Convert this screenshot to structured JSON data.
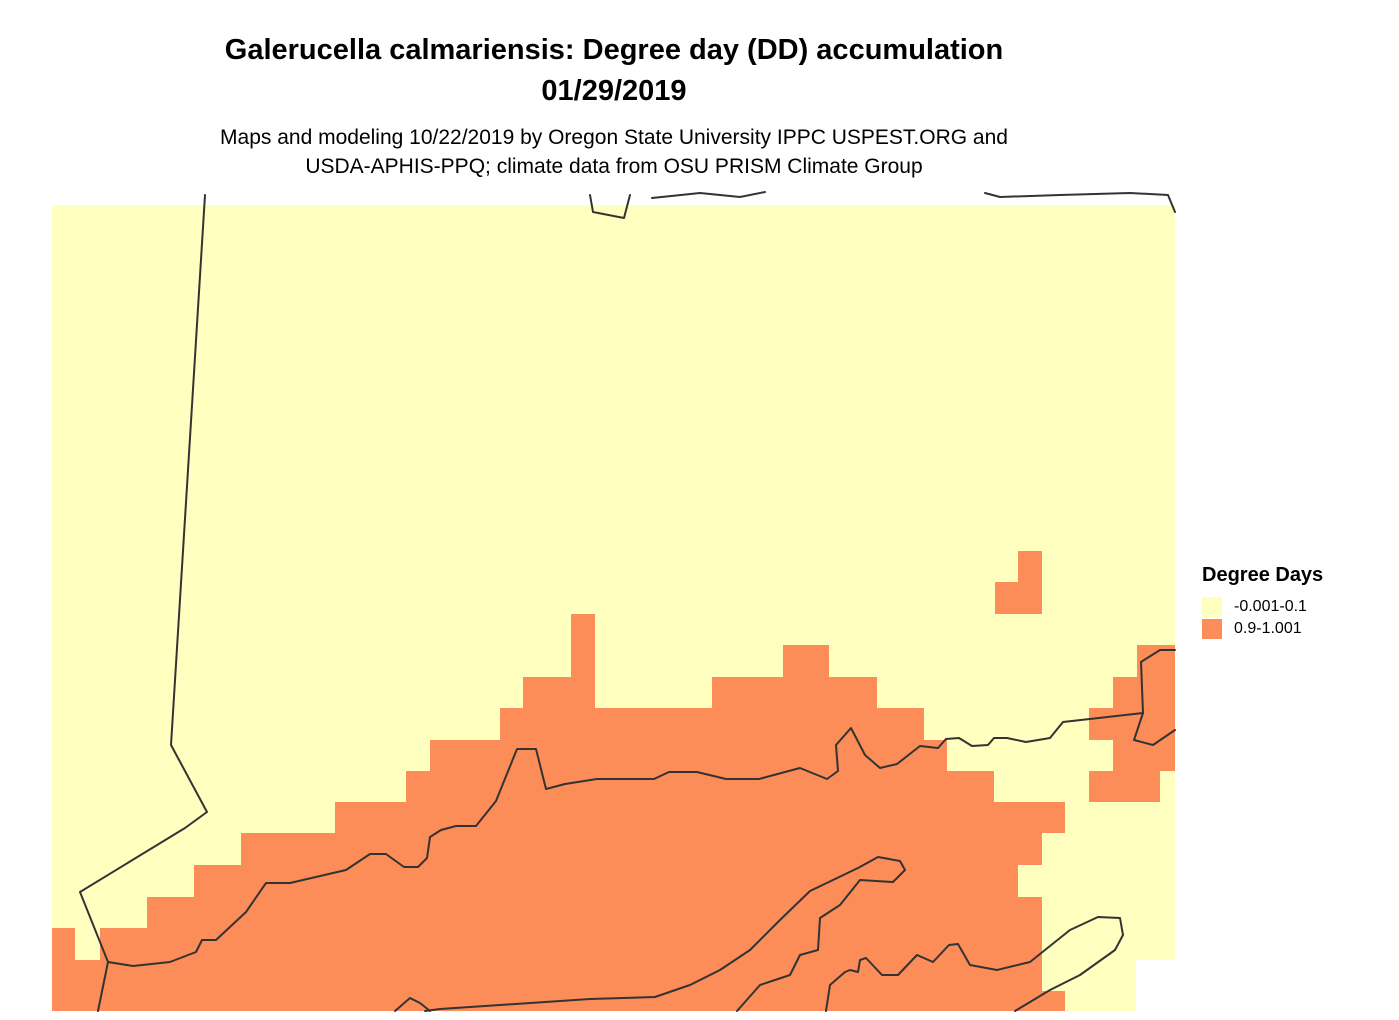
{
  "header": {
    "title_line1": "Galerucella calmariensis: Degree day (DD) accumulation",
    "title_line2": "01/29/2019",
    "subtitle_line1": "Maps and modeling 10/22/2019 by Oregon State University IPPC USPEST.ORG and",
    "subtitle_line2": "USDA-APHIS-PPQ; climate data from OSU PRISM Climate Group"
  },
  "legend": {
    "title": "Degree Days",
    "items": [
      {
        "label": "-0.001-0.1",
        "color": "#ffffc0"
      },
      {
        "label": "0.9-1.001",
        "color": "#fc8d59"
      }
    ]
  },
  "colors": {
    "low": "#ffffc0",
    "high": "#fc8d59",
    "boundary": "#333333"
  }
}
